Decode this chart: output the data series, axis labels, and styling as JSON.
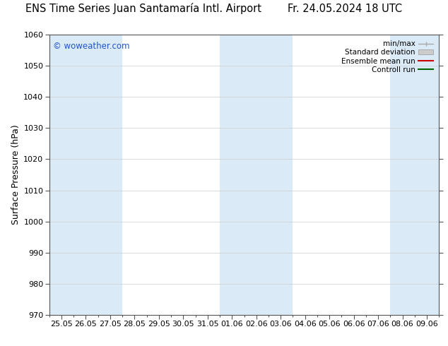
{
  "title_left": "ENS Time Series Juan Santamaría Intl. Airport",
  "title_right": "Fr. 24.05.2024 18 UTC",
  "ylabel": "Surface Pressure (hPa)",
  "ylim": [
    970,
    1060
  ],
  "yticks": [
    970,
    980,
    990,
    1000,
    1010,
    1020,
    1030,
    1040,
    1050,
    1060
  ],
  "xtick_labels": [
    "25.05",
    "26.05",
    "27.05",
    "28.05",
    "29.05",
    "30.05",
    "31.05",
    "01.06",
    "02.06",
    "03.06",
    "04.06",
    "05.06",
    "06.06",
    "07.06",
    "08.06",
    "09.06"
  ],
  "shaded_bands_x": [
    0,
    1,
    2,
    7,
    8,
    9,
    14,
    15
  ],
  "bg_color": "#ffffff",
  "band_color": "#daeaf7",
  "watermark_text": "© woweather.com",
  "watermark_color": "#2255cc",
  "legend_entries": [
    {
      "label": "min/max",
      "color": "#aaaaaa",
      "style": "errbar"
    },
    {
      "label": "Standard deviation",
      "color": "#cccccc",
      "style": "fill"
    },
    {
      "label": "Ensemble mean run",
      "color": "#cc0000",
      "style": "line"
    },
    {
      "label": "Controll run",
      "color": "#006600",
      "style": "line"
    }
  ],
  "axis_color": "#555555",
  "tick_color": "#555555",
  "title_fontsize": 10.5,
  "label_fontsize": 9,
  "tick_fontsize": 8,
  "legend_fontsize": 7.5
}
